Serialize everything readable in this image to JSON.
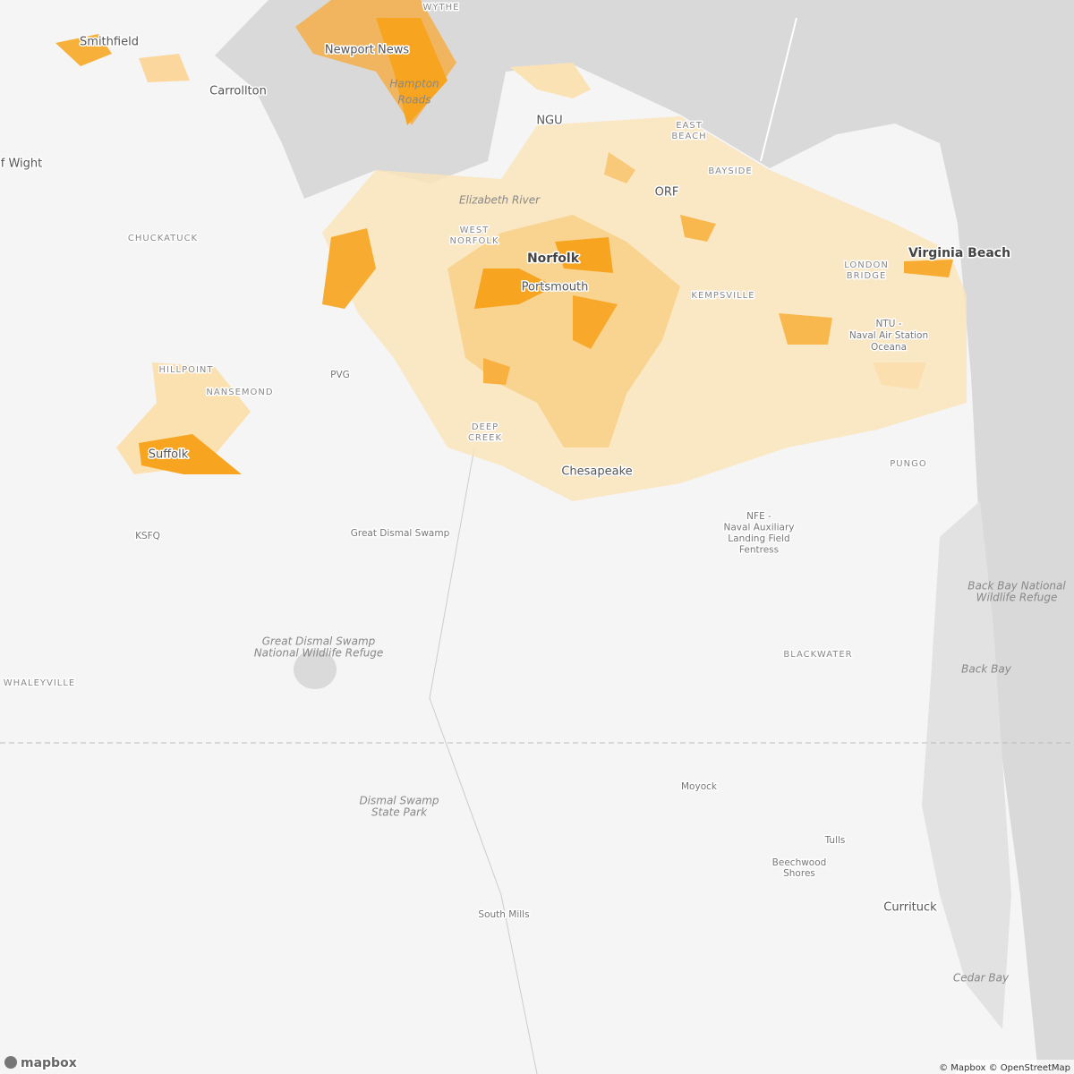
{
  "map": {
    "labels": [
      {
        "lines": [
          "WYTHE"
        ]
      },
      {
        "lines": [
          "Smithfield"
        ]
      },
      {
        "lines": [
          "Newport News"
        ]
      },
      {
        "lines": [
          "Hampton",
          "Roads"
        ]
      },
      {
        "lines": [
          "Carrollton"
        ]
      },
      {
        "lines": [
          "NGU"
        ]
      },
      {
        "lines": [
          "EAST",
          "BEACH"
        ]
      },
      {
        "lines": [
          "BAYSIDE"
        ]
      },
      {
        "lines": [
          "ORF"
        ]
      },
      {
        "lines": [
          "Elizabeth River"
        ]
      },
      {
        "lines": [
          "WEST",
          "NORFOLK"
        ]
      },
      {
        "lines": [
          "Norfolk"
        ]
      },
      {
        "lines": [
          "Portsmouth"
        ]
      },
      {
        "lines": [
          "Virginia Beach"
        ]
      },
      {
        "lines": [
          "LONDON",
          "BRIDGE"
        ]
      },
      {
        "lines": [
          "KEMPSVILLE"
        ]
      },
      {
        "lines": [
          "NTU -",
          "Naval Air Station",
          "Oceana"
        ]
      },
      {
        "lines": [
          "of Wight"
        ]
      },
      {
        "lines": [
          "CHUCKATUCK"
        ]
      },
      {
        "lines": [
          "HILLPOINT"
        ]
      },
      {
        "lines": [
          "NANSEMOND"
        ]
      },
      {
        "lines": [
          "PVG"
        ]
      },
      {
        "lines": [
          "Suffolk"
        ]
      },
      {
        "lines": [
          "DEEP",
          "CREEK"
        ]
      },
      {
        "lines": [
          "Chesapeake"
        ]
      },
      {
        "lines": [
          "PUNGO"
        ]
      },
      {
        "lines": [
          "KSFQ"
        ]
      },
      {
        "lines": [
          "Great Dismal Swamp"
        ]
      },
      {
        "lines": [
          "NFE -",
          "Naval Auxiliary",
          "Landing Field",
          "Fentress"
        ]
      },
      {
        "lines": [
          "Great Dismal Swamp",
          "National Wildlife Refuge"
        ]
      },
      {
        "lines": [
          "WHALEYVILLE"
        ]
      },
      {
        "lines": [
          "BLACKWATER"
        ]
      },
      {
        "lines": [
          "Back Bay National",
          "Wildlife Refuge"
        ]
      },
      {
        "lines": [
          "Back Bay"
        ]
      },
      {
        "lines": [
          "Dismal Swamp",
          "State Park"
        ]
      },
      {
        "lines": [
          "Moyock"
        ]
      },
      {
        "lines": [
          "Tulls"
        ]
      },
      {
        "lines": [
          "Beechwood",
          "Shores"
        ]
      },
      {
        "lines": [
          "Currituck"
        ]
      },
      {
        "lines": [
          "South Mills"
        ]
      },
      {
        "lines": [
          "Cedar Bay"
        ]
      }
    ],
    "logo": "mapbox",
    "attribution": "© Mapbox © OpenStreetMap"
  }
}
